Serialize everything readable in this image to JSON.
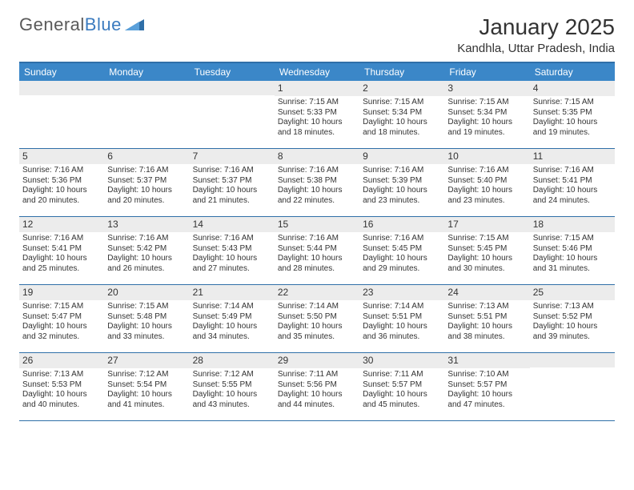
{
  "logo": {
    "text1": "General",
    "text2": "Blue",
    "text_color": "#5a5a5a",
    "accent_color": "#3b7bbf"
  },
  "title": "January 2025",
  "location": "Kandhla, Uttar Pradesh, India",
  "colors": {
    "header_bg": "#3b87c8",
    "header_text": "#ffffff",
    "border": "#2f6fa8",
    "daynum_bg": "#ececec",
    "text": "#333333",
    "background": "#ffffff"
  },
  "typography": {
    "title_fontsize": 28,
    "location_fontsize": 15,
    "dayhead_fontsize": 12,
    "daynum_fontsize": 12,
    "body_fontsize": 10
  },
  "day_headers": [
    "Sunday",
    "Monday",
    "Tuesday",
    "Wednesday",
    "Thursday",
    "Friday",
    "Saturday"
  ],
  "weeks": [
    [
      {
        "num": "",
        "lines": []
      },
      {
        "num": "",
        "lines": []
      },
      {
        "num": "",
        "lines": []
      },
      {
        "num": "1",
        "lines": [
          "Sunrise: 7:15 AM",
          "Sunset: 5:33 PM",
          "Daylight: 10 hours and 18 minutes."
        ]
      },
      {
        "num": "2",
        "lines": [
          "Sunrise: 7:15 AM",
          "Sunset: 5:34 PM",
          "Daylight: 10 hours and 18 minutes."
        ]
      },
      {
        "num": "3",
        "lines": [
          "Sunrise: 7:15 AM",
          "Sunset: 5:34 PM",
          "Daylight: 10 hours and 19 minutes."
        ]
      },
      {
        "num": "4",
        "lines": [
          "Sunrise: 7:15 AM",
          "Sunset: 5:35 PM",
          "Daylight: 10 hours and 19 minutes."
        ]
      }
    ],
    [
      {
        "num": "5",
        "lines": [
          "Sunrise: 7:16 AM",
          "Sunset: 5:36 PM",
          "Daylight: 10 hours and 20 minutes."
        ]
      },
      {
        "num": "6",
        "lines": [
          "Sunrise: 7:16 AM",
          "Sunset: 5:37 PM",
          "Daylight: 10 hours and 20 minutes."
        ]
      },
      {
        "num": "7",
        "lines": [
          "Sunrise: 7:16 AM",
          "Sunset: 5:37 PM",
          "Daylight: 10 hours and 21 minutes."
        ]
      },
      {
        "num": "8",
        "lines": [
          "Sunrise: 7:16 AM",
          "Sunset: 5:38 PM",
          "Daylight: 10 hours and 22 minutes."
        ]
      },
      {
        "num": "9",
        "lines": [
          "Sunrise: 7:16 AM",
          "Sunset: 5:39 PM",
          "Daylight: 10 hours and 23 minutes."
        ]
      },
      {
        "num": "10",
        "lines": [
          "Sunrise: 7:16 AM",
          "Sunset: 5:40 PM",
          "Daylight: 10 hours and 23 minutes."
        ]
      },
      {
        "num": "11",
        "lines": [
          "Sunrise: 7:16 AM",
          "Sunset: 5:41 PM",
          "Daylight: 10 hours and 24 minutes."
        ]
      }
    ],
    [
      {
        "num": "12",
        "lines": [
          "Sunrise: 7:16 AM",
          "Sunset: 5:41 PM",
          "Daylight: 10 hours and 25 minutes."
        ]
      },
      {
        "num": "13",
        "lines": [
          "Sunrise: 7:16 AM",
          "Sunset: 5:42 PM",
          "Daylight: 10 hours and 26 minutes."
        ]
      },
      {
        "num": "14",
        "lines": [
          "Sunrise: 7:16 AM",
          "Sunset: 5:43 PM",
          "Daylight: 10 hours and 27 minutes."
        ]
      },
      {
        "num": "15",
        "lines": [
          "Sunrise: 7:16 AM",
          "Sunset: 5:44 PM",
          "Daylight: 10 hours and 28 minutes."
        ]
      },
      {
        "num": "16",
        "lines": [
          "Sunrise: 7:16 AM",
          "Sunset: 5:45 PM",
          "Daylight: 10 hours and 29 minutes."
        ]
      },
      {
        "num": "17",
        "lines": [
          "Sunrise: 7:15 AM",
          "Sunset: 5:45 PM",
          "Daylight: 10 hours and 30 minutes."
        ]
      },
      {
        "num": "18",
        "lines": [
          "Sunrise: 7:15 AM",
          "Sunset: 5:46 PM",
          "Daylight: 10 hours and 31 minutes."
        ]
      }
    ],
    [
      {
        "num": "19",
        "lines": [
          "Sunrise: 7:15 AM",
          "Sunset: 5:47 PM",
          "Daylight: 10 hours and 32 minutes."
        ]
      },
      {
        "num": "20",
        "lines": [
          "Sunrise: 7:15 AM",
          "Sunset: 5:48 PM",
          "Daylight: 10 hours and 33 minutes."
        ]
      },
      {
        "num": "21",
        "lines": [
          "Sunrise: 7:14 AM",
          "Sunset: 5:49 PM",
          "Daylight: 10 hours and 34 minutes."
        ]
      },
      {
        "num": "22",
        "lines": [
          "Sunrise: 7:14 AM",
          "Sunset: 5:50 PM",
          "Daylight: 10 hours and 35 minutes."
        ]
      },
      {
        "num": "23",
        "lines": [
          "Sunrise: 7:14 AM",
          "Sunset: 5:51 PM",
          "Daylight: 10 hours and 36 minutes."
        ]
      },
      {
        "num": "24",
        "lines": [
          "Sunrise: 7:13 AM",
          "Sunset: 5:51 PM",
          "Daylight: 10 hours and 38 minutes."
        ]
      },
      {
        "num": "25",
        "lines": [
          "Sunrise: 7:13 AM",
          "Sunset: 5:52 PM",
          "Daylight: 10 hours and 39 minutes."
        ]
      }
    ],
    [
      {
        "num": "26",
        "lines": [
          "Sunrise: 7:13 AM",
          "Sunset: 5:53 PM",
          "Daylight: 10 hours and 40 minutes."
        ]
      },
      {
        "num": "27",
        "lines": [
          "Sunrise: 7:12 AM",
          "Sunset: 5:54 PM",
          "Daylight: 10 hours and 41 minutes."
        ]
      },
      {
        "num": "28",
        "lines": [
          "Sunrise: 7:12 AM",
          "Sunset: 5:55 PM",
          "Daylight: 10 hours and 43 minutes."
        ]
      },
      {
        "num": "29",
        "lines": [
          "Sunrise: 7:11 AM",
          "Sunset: 5:56 PM",
          "Daylight: 10 hours and 44 minutes."
        ]
      },
      {
        "num": "30",
        "lines": [
          "Sunrise: 7:11 AM",
          "Sunset: 5:57 PM",
          "Daylight: 10 hours and 45 minutes."
        ]
      },
      {
        "num": "31",
        "lines": [
          "Sunrise: 7:10 AM",
          "Sunset: 5:57 PM",
          "Daylight: 10 hours and 47 minutes."
        ]
      },
      {
        "num": "",
        "lines": []
      }
    ]
  ]
}
